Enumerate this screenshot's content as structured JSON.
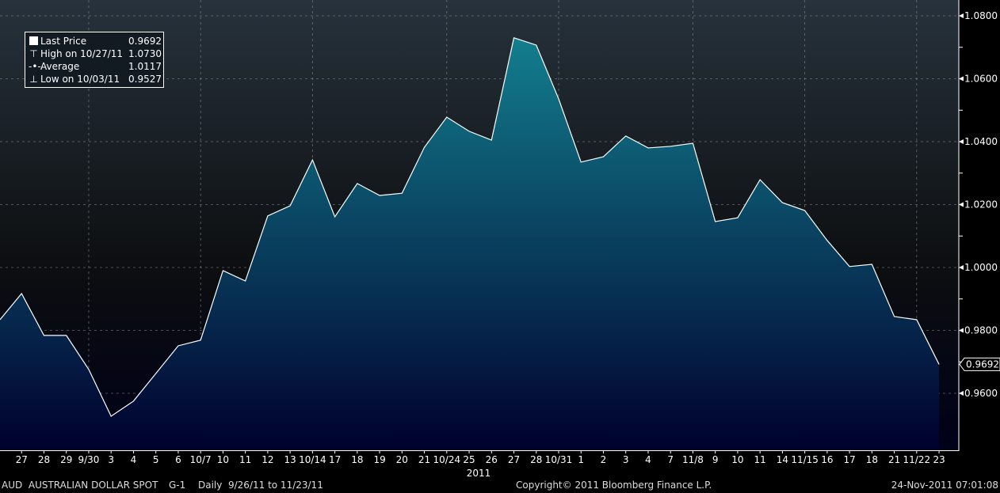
{
  "legend": {
    "items": [
      {
        "icon": "square-icon",
        "label": "Last Price",
        "value": "0.9692"
      },
      {
        "icon": "high-marker-icon",
        "label": "High on 10/27/11",
        "value": "1.0730"
      },
      {
        "icon": "average-marker-icon",
        "label": "Average",
        "value": "1.0117"
      },
      {
        "icon": "low-marker-icon",
        "label": "Low on 10/03/11",
        "value": "0.9527"
      }
    ]
  },
  "footer": {
    "security": "AUD  AUSTRALIAN DOLLAR SPOT",
    "graph": "G-1",
    "period": "Daily  9/26/11 to 11/23/11",
    "copyright": "Copyright© 2011 Bloomberg Finance L.P.",
    "timestamp": "24-Nov-2011 07:01:08"
  },
  "colors": {
    "line": "#ffffff",
    "fill_top": "#13808f",
    "fill_bottom": "#00002e",
    "background_top": "#27323c",
    "background_bottom": "#000000"
  },
  "chart_data": {
    "type": "area",
    "title": "",
    "xlabel": "2011",
    "ylabel": "",
    "ylim": [
      0.942,
      1.085
    ],
    "y_ticks": [
      "1.0800",
      "1.0600",
      "1.0400",
      "1.0200",
      "1.0000",
      "0.9800",
      "0.9600"
    ],
    "grid": true,
    "legend_position": "top-left",
    "last_price_label": "0.9692",
    "x_tick_labels": [
      "",
      "27",
      "28",
      "29",
      "9/30",
      "3",
      "4",
      "5",
      "6",
      "10/7",
      "10",
      "11",
      "12",
      "13",
      "10/14",
      "17",
      "18",
      "19",
      "20",
      "21",
      "10/24",
      "25",
      "26",
      "27",
      "28",
      "10/31",
      "1",
      "2",
      "3",
      "4",
      "7",
      "11/8",
      "9",
      "10",
      "11",
      "14",
      "11/15",
      "16",
      "17",
      "18",
      "21",
      "11/22",
      "23"
    ],
    "x": [
      "2011-09-26",
      "2011-09-27",
      "2011-09-28",
      "2011-09-29",
      "2011-09-30",
      "2011-10-03",
      "2011-10-04",
      "2011-10-05",
      "2011-10-06",
      "2011-10-07",
      "2011-10-10",
      "2011-10-11",
      "2011-10-12",
      "2011-10-13",
      "2011-10-14",
      "2011-10-17",
      "2011-10-18",
      "2011-10-19",
      "2011-10-20",
      "2011-10-21",
      "2011-10-24",
      "2011-10-25",
      "2011-10-26",
      "2011-10-27",
      "2011-10-28",
      "2011-10-31",
      "2011-11-01",
      "2011-11-02",
      "2011-11-03",
      "2011-11-04",
      "2011-11-07",
      "2011-11-08",
      "2011-11-09",
      "2011-11-10",
      "2011-11-11",
      "2011-11-14",
      "2011-11-15",
      "2011-11-16",
      "2011-11-17",
      "2011-11-18",
      "2011-11-21",
      "2011-11-22",
      "2011-11-23"
    ],
    "series": [
      {
        "name": "Last Price",
        "values": [
          0.9834,
          0.9917,
          0.9784,
          0.9784,
          0.9676,
          0.9527,
          0.9575,
          0.9663,
          0.9751,
          0.9769,
          0.999,
          0.9957,
          1.0164,
          1.0196,
          1.0342,
          1.0161,
          1.0267,
          1.0229,
          1.0236,
          1.0382,
          1.0478,
          1.0433,
          1.0405,
          1.073,
          1.0707,
          1.0536,
          1.0335,
          1.0352,
          1.0418,
          1.038,
          1.0385,
          1.0395,
          1.0146,
          1.0158,
          1.0279,
          1.0206,
          1.0181,
          1.0086,
          1.0003,
          1.001,
          0.9844,
          0.9834,
          0.9692
        ]
      }
    ]
  }
}
